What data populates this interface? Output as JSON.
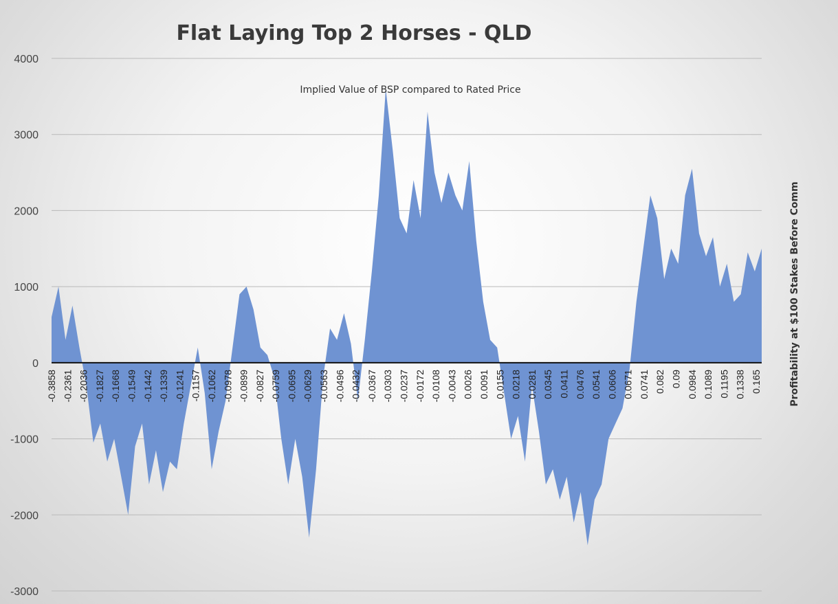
{
  "chart_data": {
    "type": "area",
    "title": "Flat Laying Top 2 Horses - QLD",
    "subtitle": "Implied Value of BSP compared to Rated Price",
    "xlabel": "",
    "ylabel": "Profitability at $100 Stakes Before Comm",
    "ylim": [
      -3000,
      4000
    ],
    "y_ticks": [
      4000,
      3000,
      2000,
      1000,
      0,
      -1000,
      -2000,
      -3000
    ],
    "grid": true,
    "legend": "none",
    "color": "#6f93d2",
    "x_tick_labels": [
      "-0.3858",
      "-0.2361",
      "-0.2036",
      "-0.1827",
      "-0.1668",
      "-0.1549",
      "-0.1442",
      "-0.1339",
      "-0.1241",
      "-0.1157",
      "-0.1062",
      "-0.0978",
      "-0.0899",
      "-0.0827",
      "-0.0759",
      "-0.0695",
      "-0.0629",
      "-0.0563",
      "-0.0496",
      "-0.0432",
      "-0.0367",
      "-0.0303",
      "-0.0237",
      "-0.0172",
      "-0.0108",
      "-0.0043",
      "0.0026",
      "0.0091",
      "0.0155",
      "0.0218",
      "0.0281",
      "0.0345",
      "0.0411",
      "0.0476",
      "0.0541",
      "0.0606",
      "0.0671",
      "0.0741",
      "0.082",
      "0.09",
      "0.0984",
      "0.1089",
      "0.1195",
      "0.1338",
      "0.165"
    ],
    "series": [
      {
        "values": [
          600,
          1000,
          300,
          750,
          200,
          -300,
          -1050,
          -800,
          -1300,
          -1000,
          -1500,
          -2000,
          -1100,
          -800,
          -1600,
          -1150,
          -1700,
          -1300,
          -1400,
          -800,
          -300,
          200,
          -400,
          -1400,
          -900,
          -500,
          200,
          900,
          1000,
          700,
          200,
          100,
          -200,
          -1000,
          -1600,
          -1000,
          -1500,
          -2300,
          -1400,
          -200,
          450,
          300,
          650,
          250,
          -500,
          300,
          1200,
          2200,
          3600,
          2800,
          1900,
          1700,
          2400,
          1900,
          3300,
          2500,
          2100,
          2500,
          2200,
          2000,
          2650,
          1600,
          800,
          300,
          200,
          -400,
          -1000,
          -700,
          -1300,
          -300,
          -900,
          -1600,
          -1400,
          -1800,
          -1500,
          -2100,
          -1700,
          -2400,
          -1800,
          -1600,
          -1000,
          -800,
          -600,
          -100,
          800,
          1500,
          2200,
          1900,
          1100,
          1500,
          1300,
          2200,
          2550,
          1700,
          1400,
          1650,
          1000,
          1300,
          800,
          900,
          1450,
          1200,
          1500
        ]
      }
    ]
  }
}
